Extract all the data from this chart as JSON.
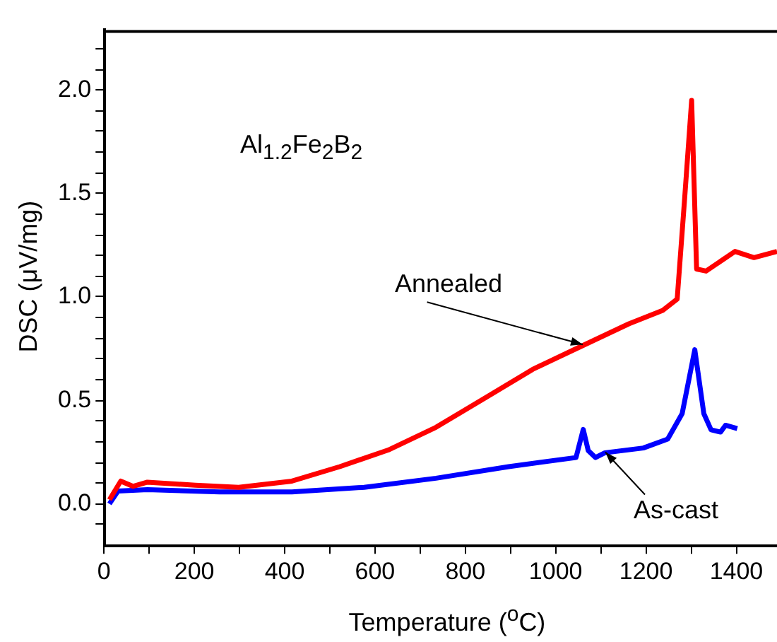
{
  "chart_data": {
    "type": "line",
    "xlabel": "Temperature ($^{o}$C)",
    "ylabel": "DSC (μV/mg)",
    "xlim": [
      0,
      1490
    ],
    "ylim": [
      -0.2,
      2.29
    ],
    "xticks": [
      0,
      {
        "value": 100,
        "label": null
      },
      200,
      {
        "value": 300,
        "label": null
      },
      400,
      {
        "value": 500,
        "label": null
      },
      600,
      {
        "value": 700,
        "label": null
      },
      800,
      {
        "value": 900,
        "label": null
      },
      1000,
      {
        "value": 1100,
        "label": null
      },
      1200,
      {
        "value": 1300,
        "label": null
      },
      1400
    ],
    "yticks": [
      {
        "value": -0.1,
        "label": null
      },
      {
        "value": 0,
        "label": "0.0"
      },
      {
        "value": 0.1,
        "label": null
      },
      {
        "value": 0.2,
        "label": null
      },
      {
        "value": 0.3,
        "label": null
      },
      {
        "value": 0.4,
        "label": null
      },
      {
        "value": 0.5,
        "label": "0.5"
      },
      {
        "value": 0.6,
        "label": null
      },
      {
        "value": 0.7,
        "label": null
      },
      {
        "value": 0.8,
        "label": null
      },
      {
        "value": 0.9,
        "label": null
      },
      {
        "value": 1.0,
        "label": "1.0"
      },
      {
        "value": 1.1,
        "label": null
      },
      {
        "value": 1.2,
        "label": null
      },
      {
        "value": 1.3,
        "label": null
      },
      {
        "value": 1.4,
        "label": null
      },
      {
        "value": 1.5,
        "label": "1.5"
      },
      {
        "value": 1.6,
        "label": null
      },
      {
        "value": 1.7,
        "label": null
      },
      {
        "value": 1.8,
        "label": null
      },
      {
        "value": 1.9,
        "label": null
      },
      {
        "value": 2.0,
        "label": "2.0"
      },
      {
        "value": 2.1,
        "label": null
      },
      {
        "value": 2.2,
        "label": null
      }
    ],
    "grid": false,
    "legend": false,
    "marker": "none",
    "line_style": "solid",
    "annotations": [
      "Al$_{1.2}$Fe$_{2}$B$_{2}$",
      {
        "text": "Annealed",
        "x": 1060,
        "y": 0.77
      },
      {
        "text": "As-cast",
        "x": 1110,
        "y": 0.25
      }
    ],
    "series": [
      {
        "color": "#ff0000",
        "x": [
          12,
          37,
          64,
          96,
          202,
          298,
          416,
          522,
          629,
          735,
          842,
          949,
          1055,
          1162,
          1237,
          1269,
          1285,
          1301,
          1312,
          1333,
          1397,
          1439,
          1490
        ],
        "values": [
          0.02,
          0.11,
          0.085,
          0.105,
          0.09,
          0.08,
          0.11,
          0.18,
          0.26,
          0.37,
          0.51,
          0.65,
          0.76,
          0.87,
          0.935,
          0.99,
          1.46,
          1.95,
          1.135,
          1.125,
          1.22,
          1.19,
          1.22
        ]
      },
      {
        "color": "#0000ff",
        "x": [
          12,
          31,
          96,
          256,
          416,
          576,
          735,
          896,
          1045,
          1061,
          1072,
          1088,
          1109,
          1194,
          1248,
          1280,
          1308,
          1328,
          1344,
          1365,
          1376,
          1402
        ],
        "values": [
          0,
          0.062,
          0.069,
          0.058,
          0.058,
          0.08,
          0.124,
          0.18,
          0.224,
          0.36,
          0.258,
          0.224,
          0.247,
          0.27,
          0.313,
          0.436,
          0.745,
          0.436,
          0.358,
          0.347,
          0.38,
          0.364
        ]
      }
    ]
  }
}
